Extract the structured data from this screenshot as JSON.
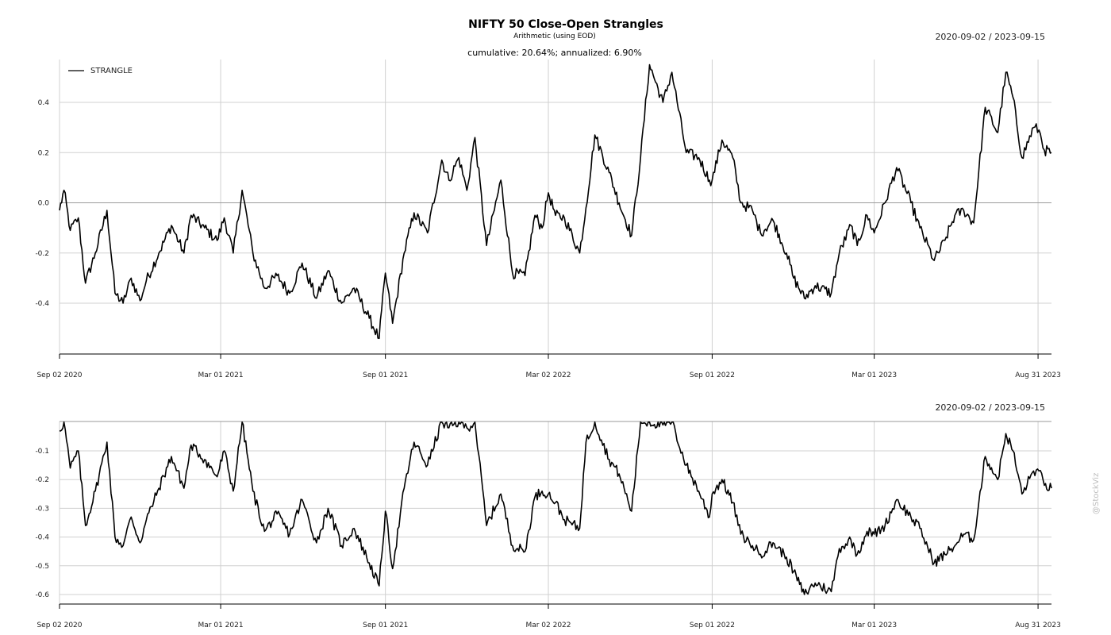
{
  "header": {
    "title": "NIFTY 50 Close-Open Strangles",
    "subtitle": "Arithmetic (using EOD)",
    "summary": "cumulative: 20.64%; annualized: 6.90%"
  },
  "watermark": "@StockViz",
  "chart_data": [
    {
      "type": "line",
      "date_range": "2020-09-02 / 2023-09-15",
      "legend": "top-left",
      "grid": true,
      "x_ticks": [
        "Sep 02 2020",
        "Mar 01 2021",
        "Sep 01 2021",
        "Mar 02 2022",
        "Sep 01 2022",
        "Mar 01 2023",
        "Aug 31 2023"
      ],
      "y_ticks": [
        "0.4",
        "0.2",
        "0.0",
        "-0.2",
        "-0.4"
      ],
      "ylim": [
        -0.55,
        0.56
      ],
      "series": [
        {
          "name": "STRANGLE",
          "color": "#000000",
          "x": [
            "2020-09-02",
            "2020-09-07",
            "2020-09-14",
            "2020-09-23",
            "2020-10-01",
            "2020-10-12",
            "2020-10-25",
            "2020-11-03",
            "2020-11-12",
            "2020-11-21",
            "2020-12-01",
            "2020-12-08",
            "2020-12-22",
            "2021-01-05",
            "2021-01-19",
            "2021-01-27",
            "2021-02-11",
            "2021-02-25",
            "2021-03-05",
            "2021-03-15",
            "2021-03-25",
            "2021-04-06",
            "2021-04-19",
            "2021-05-03",
            "2021-05-17",
            "2021-05-31",
            "2021-06-16",
            "2021-06-29",
            "2021-07-14",
            "2021-07-28",
            "2021-08-14",
            "2021-08-25",
            "2021-09-01",
            "2021-09-09",
            "2021-09-22",
            "2021-10-03",
            "2021-10-18",
            "2021-11-03",
            "2021-11-11",
            "2021-11-22",
            "2021-12-01",
            "2021-12-10",
            "2021-12-23",
            "2022-01-08",
            "2022-01-21",
            "2022-02-04",
            "2022-02-15",
            "2022-02-23",
            "2022-03-02",
            "2022-03-10",
            "2022-03-20",
            "2022-04-06",
            "2022-04-13",
            "2022-04-23",
            "2022-05-09",
            "2022-05-20",
            "2022-06-03",
            "2022-06-13",
            "2022-06-23",
            "2022-07-08",
            "2022-07-18",
            "2022-08-03",
            "2022-08-17",
            "2022-08-29",
            "2022-09-01",
            "2022-09-12",
            "2022-09-24",
            "2022-10-03",
            "2022-10-16",
            "2022-10-25",
            "2022-11-08",
            "2022-11-23",
            "2022-12-01",
            "2022-12-13",
            "2022-12-25",
            "2023-01-12",
            "2023-01-21",
            "2023-02-03",
            "2023-02-10",
            "2023-02-21",
            "2023-03-01",
            "2023-03-13",
            "2023-03-26",
            "2023-04-11",
            "2023-04-21",
            "2023-05-07",
            "2023-05-19",
            "2023-05-30",
            "2023-06-09",
            "2023-06-20",
            "2023-07-03",
            "2023-07-17",
            "2023-07-26",
            "2023-08-03",
            "2023-08-13",
            "2023-08-26",
            "2023-09-01",
            "2023-09-07",
            "2023-09-15"
          ],
          "y": [
            -0.03,
            0.05,
            -0.11,
            -0.06,
            -0.32,
            -0.2,
            -0.03,
            -0.36,
            -0.4,
            -0.3,
            -0.39,
            -0.31,
            -0.2,
            -0.09,
            -0.2,
            -0.05,
            -0.1,
            -0.15,
            -0.06,
            -0.2,
            0.05,
            -0.2,
            -0.34,
            -0.29,
            -0.36,
            -0.24,
            -0.38,
            -0.27,
            -0.4,
            -0.34,
            -0.46,
            -0.54,
            -0.28,
            -0.48,
            -0.2,
            -0.04,
            -0.12,
            0.17,
            0.09,
            0.18,
            0.05,
            0.26,
            -0.17,
            0.09,
            -0.28,
            -0.29,
            -0.05,
            -0.1,
            0.04,
            -0.05,
            -0.06,
            -0.2,
            -0.02,
            0.27,
            0.12,
            0.0,
            -0.13,
            0.18,
            0.55,
            0.4,
            0.52,
            0.2,
            0.18,
            0.09,
            0.09,
            0.25,
            0.18,
            0.0,
            -0.03,
            -0.12,
            -0.07,
            -0.2,
            -0.3,
            -0.38,
            -0.33,
            -0.36,
            -0.2,
            -0.09,
            -0.17,
            -0.05,
            -0.12,
            0.0,
            0.14,
            0.0,
            -0.1,
            -0.23,
            -0.15,
            -0.05,
            -0.03,
            -0.08,
            0.38,
            0.28,
            0.52,
            0.42,
            0.18,
            0.3,
            0.29,
            0.21,
            0.2
          ]
        }
      ]
    },
    {
      "type": "line",
      "date_range": "2020-09-02 / 2023-09-15",
      "grid": true,
      "x_ticks": [
        "Sep 02 2020",
        "Mar 01 2021",
        "Sep 01 2021",
        "Mar 02 2022",
        "Sep 01 2022",
        "Mar 01 2023",
        "Aug 31 2023"
      ],
      "y_ticks": [
        "-0.1",
        "-0.2",
        "-0.3",
        "-0.4",
        "-0.5",
        "-0.6"
      ],
      "ylim": [
        -0.6,
        0.0
      ],
      "series": [
        {
          "x": [
            "2020-09-02",
            "2020-09-07",
            "2020-09-14",
            "2020-09-23",
            "2020-10-01",
            "2020-10-12",
            "2020-10-25",
            "2020-11-03",
            "2020-11-12",
            "2020-11-21",
            "2020-12-01",
            "2020-12-08",
            "2020-12-22",
            "2021-01-05",
            "2021-01-19",
            "2021-01-27",
            "2021-02-11",
            "2021-02-25",
            "2021-03-05",
            "2021-03-15",
            "2021-03-25",
            "2021-04-06",
            "2021-04-19",
            "2021-05-03",
            "2021-05-17",
            "2021-05-31",
            "2021-06-16",
            "2021-06-29",
            "2021-07-14",
            "2021-07-28",
            "2021-08-14",
            "2021-08-25",
            "2021-09-01",
            "2021-09-09",
            "2021-09-22",
            "2021-10-03",
            "2021-10-18",
            "2021-11-03",
            "2021-11-11",
            "2021-11-22",
            "2021-12-01",
            "2021-12-10",
            "2021-12-23",
            "2022-01-08",
            "2022-01-21",
            "2022-02-04",
            "2022-02-15",
            "2022-02-23",
            "2022-03-02",
            "2022-03-10",
            "2022-03-20",
            "2022-04-06",
            "2022-04-13",
            "2022-04-23",
            "2022-05-09",
            "2022-05-20",
            "2022-06-03",
            "2022-06-13",
            "2022-06-23",
            "2022-07-08",
            "2022-07-18",
            "2022-08-03",
            "2022-08-17",
            "2022-08-29",
            "2022-09-01",
            "2022-09-12",
            "2022-09-24",
            "2022-10-03",
            "2022-10-16",
            "2022-10-25",
            "2022-11-08",
            "2022-11-23",
            "2022-12-01",
            "2022-12-13",
            "2022-12-25",
            "2023-01-12",
            "2023-01-21",
            "2023-02-03",
            "2023-02-10",
            "2023-02-21",
            "2023-03-01",
            "2023-03-13",
            "2023-03-26",
            "2023-04-11",
            "2023-04-21",
            "2023-05-07",
            "2023-05-19",
            "2023-05-30",
            "2023-06-09",
            "2023-06-20",
            "2023-07-03",
            "2023-07-17",
            "2023-07-26",
            "2023-08-03",
            "2023-08-13",
            "2023-08-26",
            "2023-09-01",
            "2023-09-07",
            "2023-09-15"
          ],
          "y": [
            -0.03,
            0.0,
            -0.16,
            -0.1,
            -0.36,
            -0.24,
            -0.07,
            -0.4,
            -0.43,
            -0.33,
            -0.42,
            -0.34,
            -0.23,
            -0.12,
            -0.23,
            -0.08,
            -0.13,
            -0.19,
            -0.1,
            -0.24,
            0.0,
            -0.24,
            -0.38,
            -0.32,
            -0.39,
            -0.27,
            -0.42,
            -0.3,
            -0.43,
            -0.37,
            -0.49,
            -0.57,
            -0.31,
            -0.51,
            -0.23,
            -0.07,
            -0.15,
            0.0,
            -0.02,
            0.0,
            -0.02,
            0.0,
            -0.36,
            -0.25,
            -0.43,
            -0.45,
            -0.26,
            -0.24,
            -0.25,
            -0.28,
            -0.34,
            -0.37,
            -0.07,
            0.0,
            -0.13,
            -0.18,
            -0.31,
            0.0,
            0.0,
            -0.01,
            0.0,
            -0.15,
            -0.24,
            -0.33,
            -0.25,
            -0.2,
            -0.28,
            -0.39,
            -0.43,
            -0.46,
            -0.42,
            -0.47,
            -0.52,
            -0.6,
            -0.56,
            -0.59,
            -0.44,
            -0.41,
            -0.46,
            -0.38,
            -0.39,
            -0.36,
            -0.27,
            -0.33,
            -0.37,
            -0.49,
            -0.46,
            -0.43,
            -0.39,
            -0.41,
            -0.12,
            -0.2,
            -0.04,
            -0.1,
            -0.25,
            -0.17,
            -0.17,
            -0.22,
            -0.23
          ]
        }
      ]
    }
  ]
}
